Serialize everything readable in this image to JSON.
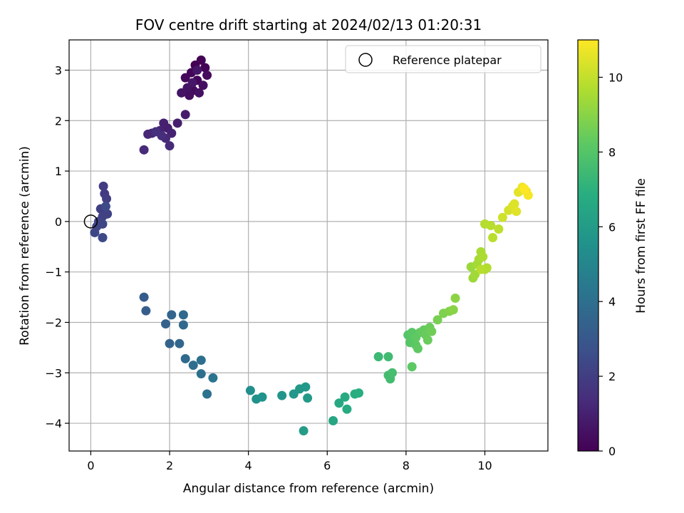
{
  "chart_data": {
    "type": "scatter",
    "title": "FOV centre drift starting at 2024/02/13 01:20:31",
    "xlabel": "Angular distance from reference (arcmin)",
    "ylabel": "Rotation from reference (arcmin)",
    "xlim": [
      -0.55,
      11.6
    ],
    "ylim": [
      -4.55,
      3.6
    ],
    "xticks": [
      "0",
      "2",
      "4",
      "6",
      "8",
      "10"
    ],
    "yticks": [
      "3",
      "2",
      "1",
      "0",
      "−1",
      "−2",
      "−3",
      "−4"
    ],
    "grid": true,
    "legend": {
      "placement": "top-right",
      "entries": [
        "Reference platepar"
      ]
    },
    "reference_point": {
      "x": 0,
      "y": 0
    },
    "colorbar": {
      "label": "Hours from first FF file",
      "range": [
        0,
        11
      ],
      "ticks": [
        "0",
        "2",
        "4",
        "6",
        "8",
        "10"
      ],
      "colormap": "viridis"
    },
    "points": [
      [
        2.65,
        3.1,
        0.0
      ],
      [
        2.8,
        3.2,
        0.05
      ],
      [
        2.9,
        3.05,
        0.1
      ],
      [
        2.55,
        2.95,
        0.15
      ],
      [
        2.7,
        2.8,
        0.2
      ],
      [
        2.4,
        2.85,
        0.25
      ],
      [
        2.95,
        2.9,
        0.3
      ],
      [
        2.6,
        2.6,
        0.35
      ],
      [
        2.5,
        2.5,
        0.4
      ],
      [
        2.85,
        2.7,
        0.45
      ],
      [
        2.75,
        2.55,
        0.5
      ],
      [
        2.45,
        2.65,
        0.55
      ],
      [
        2.3,
        2.55,
        0.6
      ],
      [
        2.7,
        3.0,
        0.65
      ],
      [
        2.58,
        2.75,
        0.7
      ],
      [
        2.4,
        2.12,
        0.8
      ],
      [
        2.2,
        1.95,
        0.9
      ],
      [
        1.95,
        1.85,
        0.95
      ],
      [
        1.85,
        1.95,
        1.0
      ],
      [
        2.05,
        1.75,
        1.05
      ],
      [
        1.75,
        1.8,
        1.1
      ],
      [
        1.55,
        1.75,
        1.15
      ],
      [
        1.45,
        1.73,
        1.2
      ],
      [
        1.9,
        1.65,
        1.25
      ],
      [
        2.0,
        1.5,
        1.3
      ],
      [
        1.35,
        1.42,
        1.35
      ],
      [
        1.8,
        1.7,
        1.4
      ],
      [
        1.65,
        1.78,
        1.45
      ],
      [
        0.35,
        0.55,
        1.9
      ],
      [
        0.32,
        0.7,
        1.95
      ],
      [
        0.4,
        0.45,
        2.0
      ],
      [
        0.25,
        0.25,
        2.05
      ],
      [
        0.3,
        0.1,
        2.1
      ],
      [
        0.42,
        0.15,
        2.15
      ],
      [
        0.2,
        0.0,
        2.2
      ],
      [
        0.15,
        -0.1,
        2.25
      ],
      [
        0.3,
        -0.05,
        2.3
      ],
      [
        0.1,
        -0.22,
        2.35
      ],
      [
        0.3,
        -0.32,
        2.4
      ],
      [
        0.38,
        0.3,
        2.45
      ],
      [
        1.35,
        -1.5,
        3.2
      ],
      [
        1.4,
        -1.77,
        3.25
      ],
      [
        1.9,
        -2.03,
        3.4
      ],
      [
        2.0,
        -2.42,
        3.5
      ],
      [
        2.05,
        -1.85,
        3.55
      ],
      [
        2.25,
        -2.42,
        3.6
      ],
      [
        2.35,
        -1.85,
        3.7
      ],
      [
        2.35,
        -2.05,
        3.75
      ],
      [
        2.4,
        -2.72,
        3.8
      ],
      [
        2.6,
        -2.85,
        3.9
      ],
      [
        2.8,
        -2.75,
        4.0
      ],
      [
        2.8,
        -3.02,
        4.05
      ],
      [
        2.95,
        -3.42,
        4.1
      ],
      [
        3.1,
        -3.1,
        4.2
      ],
      [
        4.05,
        -3.35,
        5.4
      ],
      [
        4.2,
        -3.52,
        5.5
      ],
      [
        4.35,
        -3.48,
        5.55
      ],
      [
        4.85,
        -3.45,
        5.7
      ],
      [
        5.15,
        -3.42,
        5.8
      ],
      [
        5.3,
        -3.32,
        5.85
      ],
      [
        5.45,
        -3.28,
        5.9
      ],
      [
        5.5,
        -3.5,
        5.95
      ],
      [
        5.4,
        -4.15,
        6.0
      ],
      [
        6.15,
        -3.95,
        6.5
      ],
      [
        6.3,
        -3.6,
        6.6
      ],
      [
        6.45,
        -3.48,
        6.7
      ],
      [
        6.5,
        -3.72,
        6.75
      ],
      [
        6.7,
        -3.42,
        6.85
      ],
      [
        6.8,
        -3.4,
        6.9
      ],
      [
        7.3,
        -2.68,
        7.4
      ],
      [
        7.55,
        -2.68,
        7.5
      ],
      [
        7.55,
        -3.05,
        7.55
      ],
      [
        7.6,
        -3.12,
        7.6
      ],
      [
        7.65,
        -3.0,
        7.65
      ],
      [
        8.05,
        -2.25,
        8.0
      ],
      [
        8.1,
        -2.4,
        8.05
      ],
      [
        8.15,
        -2.2,
        8.1
      ],
      [
        8.2,
        -2.3,
        8.15
      ],
      [
        8.25,
        -2.45,
        8.2
      ],
      [
        8.3,
        -2.52,
        8.25
      ],
      [
        8.35,
        -2.2,
        8.3
      ],
      [
        8.45,
        -2.15,
        8.35
      ],
      [
        8.5,
        -2.25,
        8.4
      ],
      [
        8.55,
        -2.35,
        8.45
      ],
      [
        8.6,
        -2.1,
        8.5
      ],
      [
        8.65,
        -2.18,
        8.55
      ],
      [
        8.15,
        -2.88,
        8.2
      ],
      [
        8.25,
        -2.3,
        8.25
      ],
      [
        8.8,
        -1.95,
        8.7
      ],
      [
        8.95,
        -1.82,
        8.8
      ],
      [
        9.1,
        -1.78,
        8.9
      ],
      [
        9.2,
        -1.75,
        9.0
      ],
      [
        9.25,
        -1.52,
        9.05
      ],
      [
        9.65,
        -0.9,
        9.3
      ],
      [
        9.7,
        -1.12,
        9.35
      ],
      [
        9.75,
        -1.05,
        9.4
      ],
      [
        9.8,
        -0.85,
        9.45
      ],
      [
        9.85,
        -0.75,
        9.5
      ],
      [
        9.9,
        -0.6,
        9.55
      ],
      [
        9.95,
        -0.7,
        9.6
      ],
      [
        10.0,
        -0.95,
        9.65
      ],
      [
        10.05,
        -0.92,
        9.7
      ],
      [
        10.0,
        -0.05,
        9.75
      ],
      [
        10.15,
        -0.08,
        9.8
      ],
      [
        10.2,
        -0.32,
        9.85
      ],
      [
        10.35,
        -0.15,
        9.9
      ],
      [
        9.9,
        -0.95,
        9.8
      ],
      [
        10.45,
        0.08,
        10.2
      ],
      [
        10.6,
        0.22,
        10.3
      ],
      [
        10.7,
        0.3,
        10.4
      ],
      [
        10.75,
        0.35,
        10.45
      ],
      [
        10.85,
        0.58,
        10.55
      ],
      [
        10.8,
        0.2,
        10.5
      ],
      [
        10.95,
        0.68,
        10.7
      ],
      [
        11.05,
        0.6,
        10.8
      ],
      [
        11.1,
        0.52,
        10.9
      ],
      [
        11.0,
        0.65,
        11.0
      ]
    ]
  }
}
